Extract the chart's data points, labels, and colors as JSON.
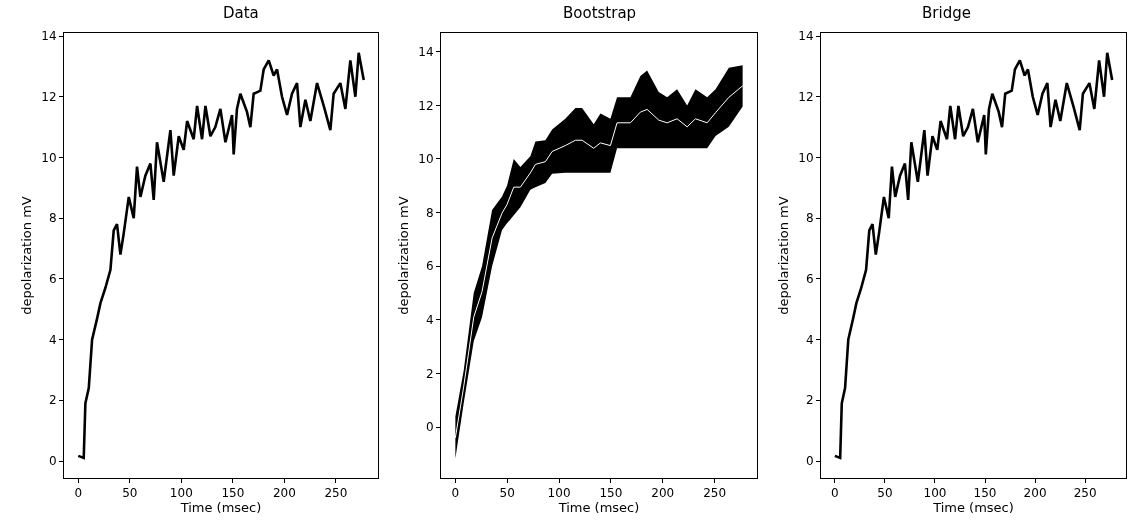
{
  "chart_data": [
    {
      "type": "line",
      "title": "Data",
      "xlabel": "Time (msec)",
      "ylabel": "depolarization mV",
      "xlim": [
        -13.85,
        290.85
      ],
      "ylim": [
        -0.56,
        14.1
      ],
      "xticks": [
        0,
        50,
        100,
        150,
        200,
        250
      ],
      "yticks": [
        0,
        2,
        4,
        6,
        8,
        10,
        12,
        14
      ],
      "series": [
        {
          "color": "#000000",
          "x": [
            0,
            5.3,
            6.9,
            10.2,
            13.4,
            18.3,
            21.5,
            26.3,
            31.2,
            34.4,
            37.6,
            40.9,
            44.1,
            49,
            53.8,
            57,
            60.3,
            65.1,
            70,
            73.2,
            76.4,
            82.9,
            89.4,
            92.6,
            97.5,
            102.3,
            105.6,
            112,
            115.3,
            120.1,
            123.4,
            128.2,
            133,
            137.9,
            142.8,
            149.2,
            150.8,
            154,
            157.3,
            163.7,
            167,
            170.2,
            176.7,
            179.9,
            184.8,
            189.6,
            192.9,
            197.7,
            202.6,
            207.4,
            212.3,
            215.5,
            220.4,
            225.2,
            231.7,
            238.2,
            244.6,
            247.8,
            254.3,
            259.2,
            264,
            268.9,
            272.1,
            277
          ],
          "values": [
            0.17,
            0.1,
            1.9,
            2.4,
            4.0,
            4.7,
            5.2,
            5.7,
            6.3,
            7.6,
            7.8,
            6.8,
            7.5,
            8.7,
            8.0,
            9.7,
            8.7,
            9.4,
            9.8,
            8.6,
            10.5,
            9.2,
            10.9,
            9.4,
            10.7,
            10.25,
            11.2,
            10.6,
            11.7,
            10.6,
            11.7,
            10.7,
            11.0,
            11.6,
            10.5,
            11.4,
            10.1,
            11.6,
            12.1,
            11.5,
            11.0,
            12.1,
            12.2,
            12.9,
            13.2,
            12.7,
            12.9,
            12.0,
            11.4,
            12.1,
            12.45,
            11.0,
            11.9,
            11.2,
            12.45,
            11.7,
            10.9,
            12.1,
            12.45,
            11.6,
            13.2,
            12.0,
            13.45,
            12.55
          ]
        }
      ]
    },
    {
      "type": "line",
      "title": "Bootstrap",
      "xlabel": "Time (msec)",
      "ylabel": "depolarization mV",
      "xlim": [
        -13.85,
        290.85
      ],
      "ylim": [
        -1.9,
        14.7
      ],
      "xticks": [
        0,
        50,
        100,
        150,
        200,
        250
      ],
      "yticks": [
        0,
        2,
        4,
        6,
        8,
        10,
        12,
        14
      ],
      "series": [
        {
          "color": "#ffffff",
          "x": [
            0,
            8,
            17.7,
            25.7,
            35.4,
            45,
            49.8,
            56.3,
            62.7,
            72.3,
            77.2,
            86.8,
            93.3,
            106,
            115.8,
            122.2,
            133.4,
            139.9,
            149.5,
            155.9,
            168.8,
            178.4,
            184.9,
            196.1,
            204.2,
            213.8,
            223.5,
            231.5,
            242.8,
            250.9,
            263.7,
            277
          ],
          "values": [
            -0.4,
            1.5,
            4.1,
            5.05,
            7.05,
            7.98,
            8.3,
            8.95,
            8.95,
            9.48,
            9.8,
            9.9,
            10.28,
            10.5,
            10.7,
            10.7,
            10.4,
            10.6,
            10.5,
            11.35,
            11.35,
            11.75,
            11.85,
            11.45,
            11.35,
            11.5,
            11.2,
            11.5,
            11.35,
            11.73,
            12.3,
            12.73
          ],
          "lower": [
            -1.17,
            0.88,
            3.2,
            4.1,
            6.0,
            7.35,
            7.6,
            7.9,
            8.2,
            8.85,
            8.95,
            9.1,
            9.45,
            9.49,
            9.49,
            9.49,
            9.49,
            9.49,
            9.49,
            10.4,
            10.4,
            10.4,
            10.4,
            10.4,
            10.4,
            10.4,
            10.4,
            10.4,
            10.4,
            10.86,
            11.2,
            11.96
          ],
          "upper": [
            0.39,
            2.1,
            5.0,
            6.0,
            8.1,
            8.6,
            9.0,
            10.0,
            9.7,
            10.1,
            10.65,
            10.7,
            11.1,
            11.5,
            11.9,
            11.9,
            11.3,
            11.7,
            11.5,
            12.3,
            12.3,
            13.1,
            13.3,
            12.5,
            12.3,
            12.6,
            12.0,
            12.6,
            12.3,
            12.6,
            13.4,
            13.5
          ]
        }
      ]
    },
    {
      "type": "line",
      "title": "Bridge",
      "xlabel": "Time (msec)",
      "ylabel": "depolarization mV",
      "xlim": [
        -13.85,
        290.85
      ],
      "ylim": [
        -0.56,
        14.1
      ],
      "xticks": [
        0,
        50,
        100,
        150,
        200,
        250
      ],
      "yticks": [
        0,
        2,
        4,
        6,
        8,
        10,
        12,
        14
      ],
      "series": [
        {
          "color": "#000000",
          "x": [
            0,
            5.3,
            6.9,
            10.2,
            13.4,
            18.3,
            21.5,
            26.3,
            31.2,
            34.4,
            37.6,
            40.9,
            44.1,
            49,
            53.8,
            57,
            60.3,
            65.1,
            70,
            73.2,
            76.4,
            82.9,
            89.4,
            92.6,
            97.5,
            102.3,
            105.6,
            112,
            115.3,
            120.1,
            123.4,
            128.2,
            133,
            137.9,
            142.8,
            149.2,
            150.8,
            154,
            157.3,
            163.7,
            167,
            170.2,
            176.7,
            179.9,
            184.8,
            189.6,
            192.9,
            197.7,
            202.6,
            207.4,
            212.3,
            215.5,
            220.4,
            225.2,
            231.7,
            238.2,
            244.6,
            247.8,
            254.3,
            259.2,
            264,
            268.9,
            272.1,
            277
          ],
          "values": [
            0.17,
            0.1,
            1.9,
            2.4,
            4.0,
            4.7,
            5.2,
            5.7,
            6.3,
            7.6,
            7.8,
            6.8,
            7.5,
            8.7,
            8.0,
            9.7,
            8.7,
            9.4,
            9.8,
            8.6,
            10.5,
            9.2,
            10.9,
            9.4,
            10.7,
            10.25,
            11.2,
            10.6,
            11.7,
            10.6,
            11.7,
            10.7,
            11.0,
            11.6,
            10.5,
            11.4,
            10.1,
            11.6,
            12.1,
            11.5,
            11.0,
            12.1,
            12.2,
            12.9,
            13.2,
            12.7,
            12.9,
            12.0,
            11.4,
            12.1,
            12.45,
            11.0,
            11.9,
            11.2,
            12.45,
            11.7,
            10.9,
            12.1,
            12.45,
            11.6,
            13.2,
            12.0,
            13.45,
            12.55
          ]
        }
      ]
    }
  ]
}
